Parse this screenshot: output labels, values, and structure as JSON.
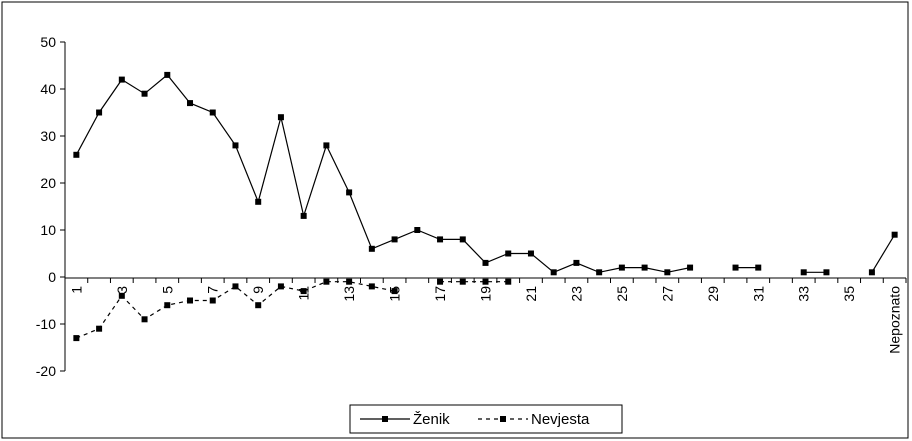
{
  "chart_data": {
    "type": "line",
    "categories": [
      "1",
      "2",
      "3",
      "4",
      "5",
      "6",
      "7",
      "8",
      "9",
      "10",
      "11",
      "12",
      "13",
      "14",
      "15",
      "16",
      "17",
      "18",
      "19",
      "20",
      "21",
      "22",
      "23",
      "24",
      "25",
      "26",
      "27",
      "28",
      "29",
      "30",
      "31",
      "32",
      "33",
      "34",
      "35",
      "36",
      "Nepoznato"
    ],
    "x_tick_labels": [
      "1",
      "3",
      "5",
      "7",
      "9",
      "11",
      "13",
      "15",
      "17",
      "19",
      "21",
      "23",
      "25",
      "27",
      "29",
      "31",
      "33",
      "35",
      "Nepoznato"
    ],
    "series": [
      {
        "name": "Ženik",
        "line_style": "solid",
        "values": [
          26,
          35,
          42,
          39,
          43,
          37,
          35,
          28,
          16,
          34,
          13,
          28,
          18,
          6,
          8,
          10,
          8,
          8,
          3,
          5,
          5,
          1,
          3,
          1,
          2,
          2,
          1,
          2,
          null,
          2,
          2,
          null,
          1,
          1,
          null,
          1,
          9
        ]
      },
      {
        "name": "Nevjesta",
        "line_style": "dashed",
        "values": [
          -13,
          -11,
          -4,
          -9,
          -6,
          -5,
          -5,
          -2,
          -6,
          -2,
          -3,
          -1,
          -1,
          -2,
          -3,
          null,
          -1,
          -1,
          -1,
          -1,
          null,
          null,
          null,
          null,
          null,
          null,
          null,
          null,
          null,
          null,
          null,
          null,
          null,
          null,
          null,
          null,
          null
        ]
      }
    ],
    "y_ticks": [
      50,
      40,
      30,
      20,
      10,
      0,
      -10,
      -20
    ],
    "ylim": [
      -20,
      50
    ],
    "grid": false,
    "legend_position": "bottom",
    "colors": {
      "line": "#000000",
      "background": "#ffffff"
    }
  }
}
